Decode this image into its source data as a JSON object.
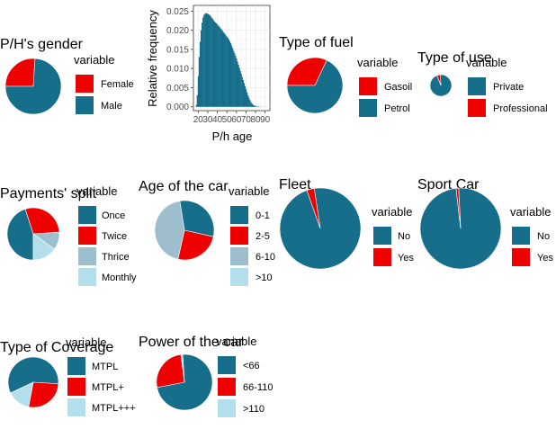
{
  "colors": {
    "teal": "#166e8a",
    "red": "#ee0000",
    "grayblue": "#9dbfcd",
    "lightblue": "#b3dfec",
    "grid": "#ebebeb",
    "histfill": "#166e8a"
  },
  "chart_data": [
    {
      "type": "pie",
      "title": "P/H's gender",
      "legend_title": "variable",
      "categories": [
        "Female",
        "Male"
      ],
      "values": [
        26,
        74
      ],
      "colors": [
        "#ee0000",
        "#166e8a"
      ]
    },
    {
      "type": "bar",
      "title": "",
      "xlabel": "P/h age",
      "ylabel": "Relative frequency",
      "x_ticks": [
        "20",
        "30",
        "40",
        "50",
        "60",
        "70",
        "80",
        "90"
      ],
      "y_ticks": [
        "0.000",
        "0.005",
        "0.010",
        "0.015",
        "0.020",
        "0.025"
      ],
      "xlim": [
        15,
        95
      ],
      "ylim": [
        -0.001,
        0.0265
      ],
      "x": [
        18,
        19,
        20,
        21,
        22,
        23,
        24,
        25,
        26,
        27,
        28,
        29,
        30,
        31,
        32,
        33,
        34,
        35,
        36,
        37,
        38,
        39,
        40,
        41,
        42,
        43,
        44,
        45,
        46,
        47,
        48,
        49,
        50,
        51,
        52,
        53,
        54,
        55,
        56,
        57,
        58,
        59,
        60,
        61,
        62,
        63,
        64,
        65,
        66,
        67,
        68,
        69,
        70,
        71,
        72,
        73,
        74,
        75,
        76,
        77,
        78,
        79,
        80,
        81,
        82,
        83,
        84,
        85
      ],
      "values": [
        0.0005,
        0.003,
        0.008,
        0.013,
        0.017,
        0.02,
        0.022,
        0.0233,
        0.024,
        0.0243,
        0.0245,
        0.0244,
        0.0243,
        0.0241,
        0.024,
        0.0236,
        0.0233,
        0.023,
        0.0226,
        0.0223,
        0.022,
        0.0218,
        0.0215,
        0.0212,
        0.021,
        0.0206,
        0.0203,
        0.02,
        0.0196,
        0.0193,
        0.019,
        0.0186,
        0.0183,
        0.018,
        0.0176,
        0.0171,
        0.0166,
        0.016,
        0.0153,
        0.0146,
        0.014,
        0.0133,
        0.0126,
        0.0118,
        0.011,
        0.0102,
        0.0094,
        0.0086,
        0.0078,
        0.007,
        0.0062,
        0.0054,
        0.0046,
        0.0038,
        0.003,
        0.0024,
        0.0018,
        0.0013,
        0.0009,
        0.0006,
        0.0004,
        0.0003,
        0.0002,
        0.0001,
        0.0001,
        0.0001,
        5e-05,
        3e-05
      ]
    },
    {
      "type": "pie",
      "title": "Type of fuel",
      "legend_title": "variable",
      "categories": [
        "Gasoil",
        "Petrol"
      ],
      "values": [
        32,
        68
      ],
      "colors": [
        "#ee0000",
        "#166e8a"
      ]
    },
    {
      "type": "pie",
      "title": "Type of use",
      "legend_title": "variable",
      "categories": [
        "Private",
        "Professional"
      ],
      "values": [
        95,
        5
      ],
      "colors": [
        "#166e8a",
        "#ee0000"
      ]
    },
    {
      "type": "pie",
      "title": "Payments' split",
      "legend_title": "variable",
      "categories": [
        "Once",
        "Twice",
        "Thrice",
        "Monthly"
      ],
      "values": [
        45,
        29,
        11,
        15
      ],
      "colors": [
        "#166e8a",
        "#ee0000",
        "#9dbfcd",
        "#b3dfec"
      ]
    },
    {
      "type": "pie",
      "title": "Age of the car",
      "legend_title": "variable",
      "categories": [
        "0-1",
        "2-5",
        "6-10",
        ">10"
      ],
      "values": [
        31,
        25,
        44,
        0
      ],
      "colors": [
        "#166e8a",
        "#ee0000",
        "#9dbfcd",
        "#b3dfec"
      ]
    },
    {
      "type": "pie",
      "title": "Fleet",
      "legend_title": "variable",
      "categories": [
        "No",
        "Yes"
      ],
      "values": [
        97,
        3
      ],
      "colors": [
        "#166e8a",
        "#ee0000"
      ]
    },
    {
      "type": "pie",
      "title": "Sport Car",
      "legend_title": "variable",
      "categories": [
        "No",
        "Yes"
      ],
      "values": [
        99,
        1
      ],
      "colors": [
        "#166e8a",
        "#ee0000"
      ]
    },
    {
      "type": "pie",
      "title": "Type of Coverage",
      "legend_title": "variable",
      "categories": [
        "MTPL",
        "MTPL+",
        "MTPL+++"
      ],
      "values": [
        58,
        27,
        15
      ],
      "colors": [
        "#166e8a",
        "#ee0000",
        "#b3dfec"
      ]
    },
    {
      "type": "pie",
      "title": "Power of the car",
      "legend_title": "variable",
      "categories": [
        "<66",
        "66-110",
        ">110"
      ],
      "values": [
        73,
        26,
        1
      ],
      "colors": [
        "#166e8a",
        "#ee0000",
        "#b3dfec"
      ]
    }
  ]
}
